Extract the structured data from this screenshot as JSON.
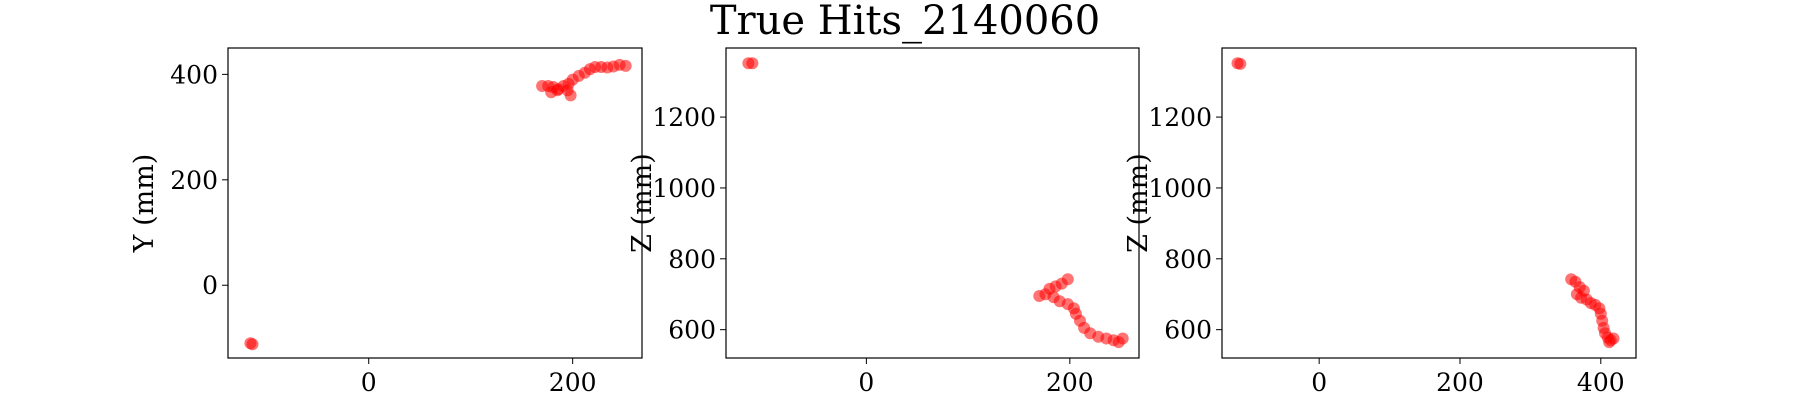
{
  "title": "True Hits_2140060",
  "chart_data": [
    {
      "type": "scatter",
      "xlabel": "",
      "ylabel": "Y (mm)",
      "xlim": [
        -138,
        268
      ],
      "ylim": [
        -138,
        450
      ],
      "xticks": [
        0,
        200
      ],
      "yticks": [
        0,
        200,
        400
      ],
      "grid": false,
      "color": "#ff0000",
      "points": [
        [
          -116,
          -110
        ],
        [
          -114,
          -112
        ],
        [
          170,
          378
        ],
        [
          176,
          378
        ],
        [
          181,
          376
        ],
        [
          185,
          370
        ],
        [
          179,
          366
        ],
        [
          186,
          372
        ],
        [
          191,
          378
        ],
        [
          195,
          370
        ],
        [
          198,
          360
        ],
        [
          196,
          382
        ],
        [
          200,
          390
        ],
        [
          206,
          397
        ],
        [
          212,
          403
        ],
        [
          217,
          410
        ],
        [
          222,
          414
        ],
        [
          228,
          414
        ],
        [
          234,
          413
        ],
        [
          240,
          415
        ],
        [
          246,
          418
        ],
        [
          252,
          416
        ]
      ]
    },
    {
      "type": "scatter",
      "xlabel": "",
      "ylabel": "Z (mm)",
      "xlim": [
        -138,
        268
      ],
      "ylim": [
        520,
        1395
      ],
      "xticks": [
        0,
        200
      ],
      "yticks": [
        600,
        800,
        1000,
        1200
      ],
      "grid": false,
      "color": "#ff0000",
      "points": [
        [
          -116,
          1352
        ],
        [
          -112,
          1352
        ],
        [
          170,
          695
        ],
        [
          176,
          700
        ],
        [
          180,
          715
        ],
        [
          186,
          722
        ],
        [
          192,
          730
        ],
        [
          198,
          742
        ],
        [
          184,
          692
        ],
        [
          190,
          680
        ],
        [
          198,
          672
        ],
        [
          204,
          660
        ],
        [
          206,
          645
        ],
        [
          210,
          625
        ],
        [
          214,
          605
        ],
        [
          220,
          590
        ],
        [
          228,
          580
        ],
        [
          236,
          575
        ],
        [
          243,
          570
        ],
        [
          248,
          565
        ],
        [
          252,
          575
        ]
      ]
    },
    {
      "type": "scatter",
      "xlabel": "",
      "ylabel": "Z (mm)",
      "xlim": [
        -138,
        450
      ],
      "ylim": [
        520,
        1395
      ],
      "xticks": [
        0,
        200,
        400
      ],
      "yticks": [
        600,
        800,
        1000,
        1200
      ],
      "grid": false,
      "color": "#ff0000",
      "points": [
        [
          -116,
          1352
        ],
        [
          -112,
          1350
        ],
        [
          358,
          742
        ],
        [
          364,
          735
        ],
        [
          370,
          720
        ],
        [
          376,
          710
        ],
        [
          366,
          700
        ],
        [
          372,
          690
        ],
        [
          380,
          685
        ],
        [
          386,
          675
        ],
        [
          392,
          670
        ],
        [
          398,
          660
        ],
        [
          400,
          645
        ],
        [
          402,
          625
        ],
        [
          404,
          605
        ],
        [
          406,
          590
        ],
        [
          410,
          578
        ],
        [
          414,
          570
        ],
        [
          418,
          575
        ],
        [
          412,
          565
        ]
      ]
    }
  ]
}
